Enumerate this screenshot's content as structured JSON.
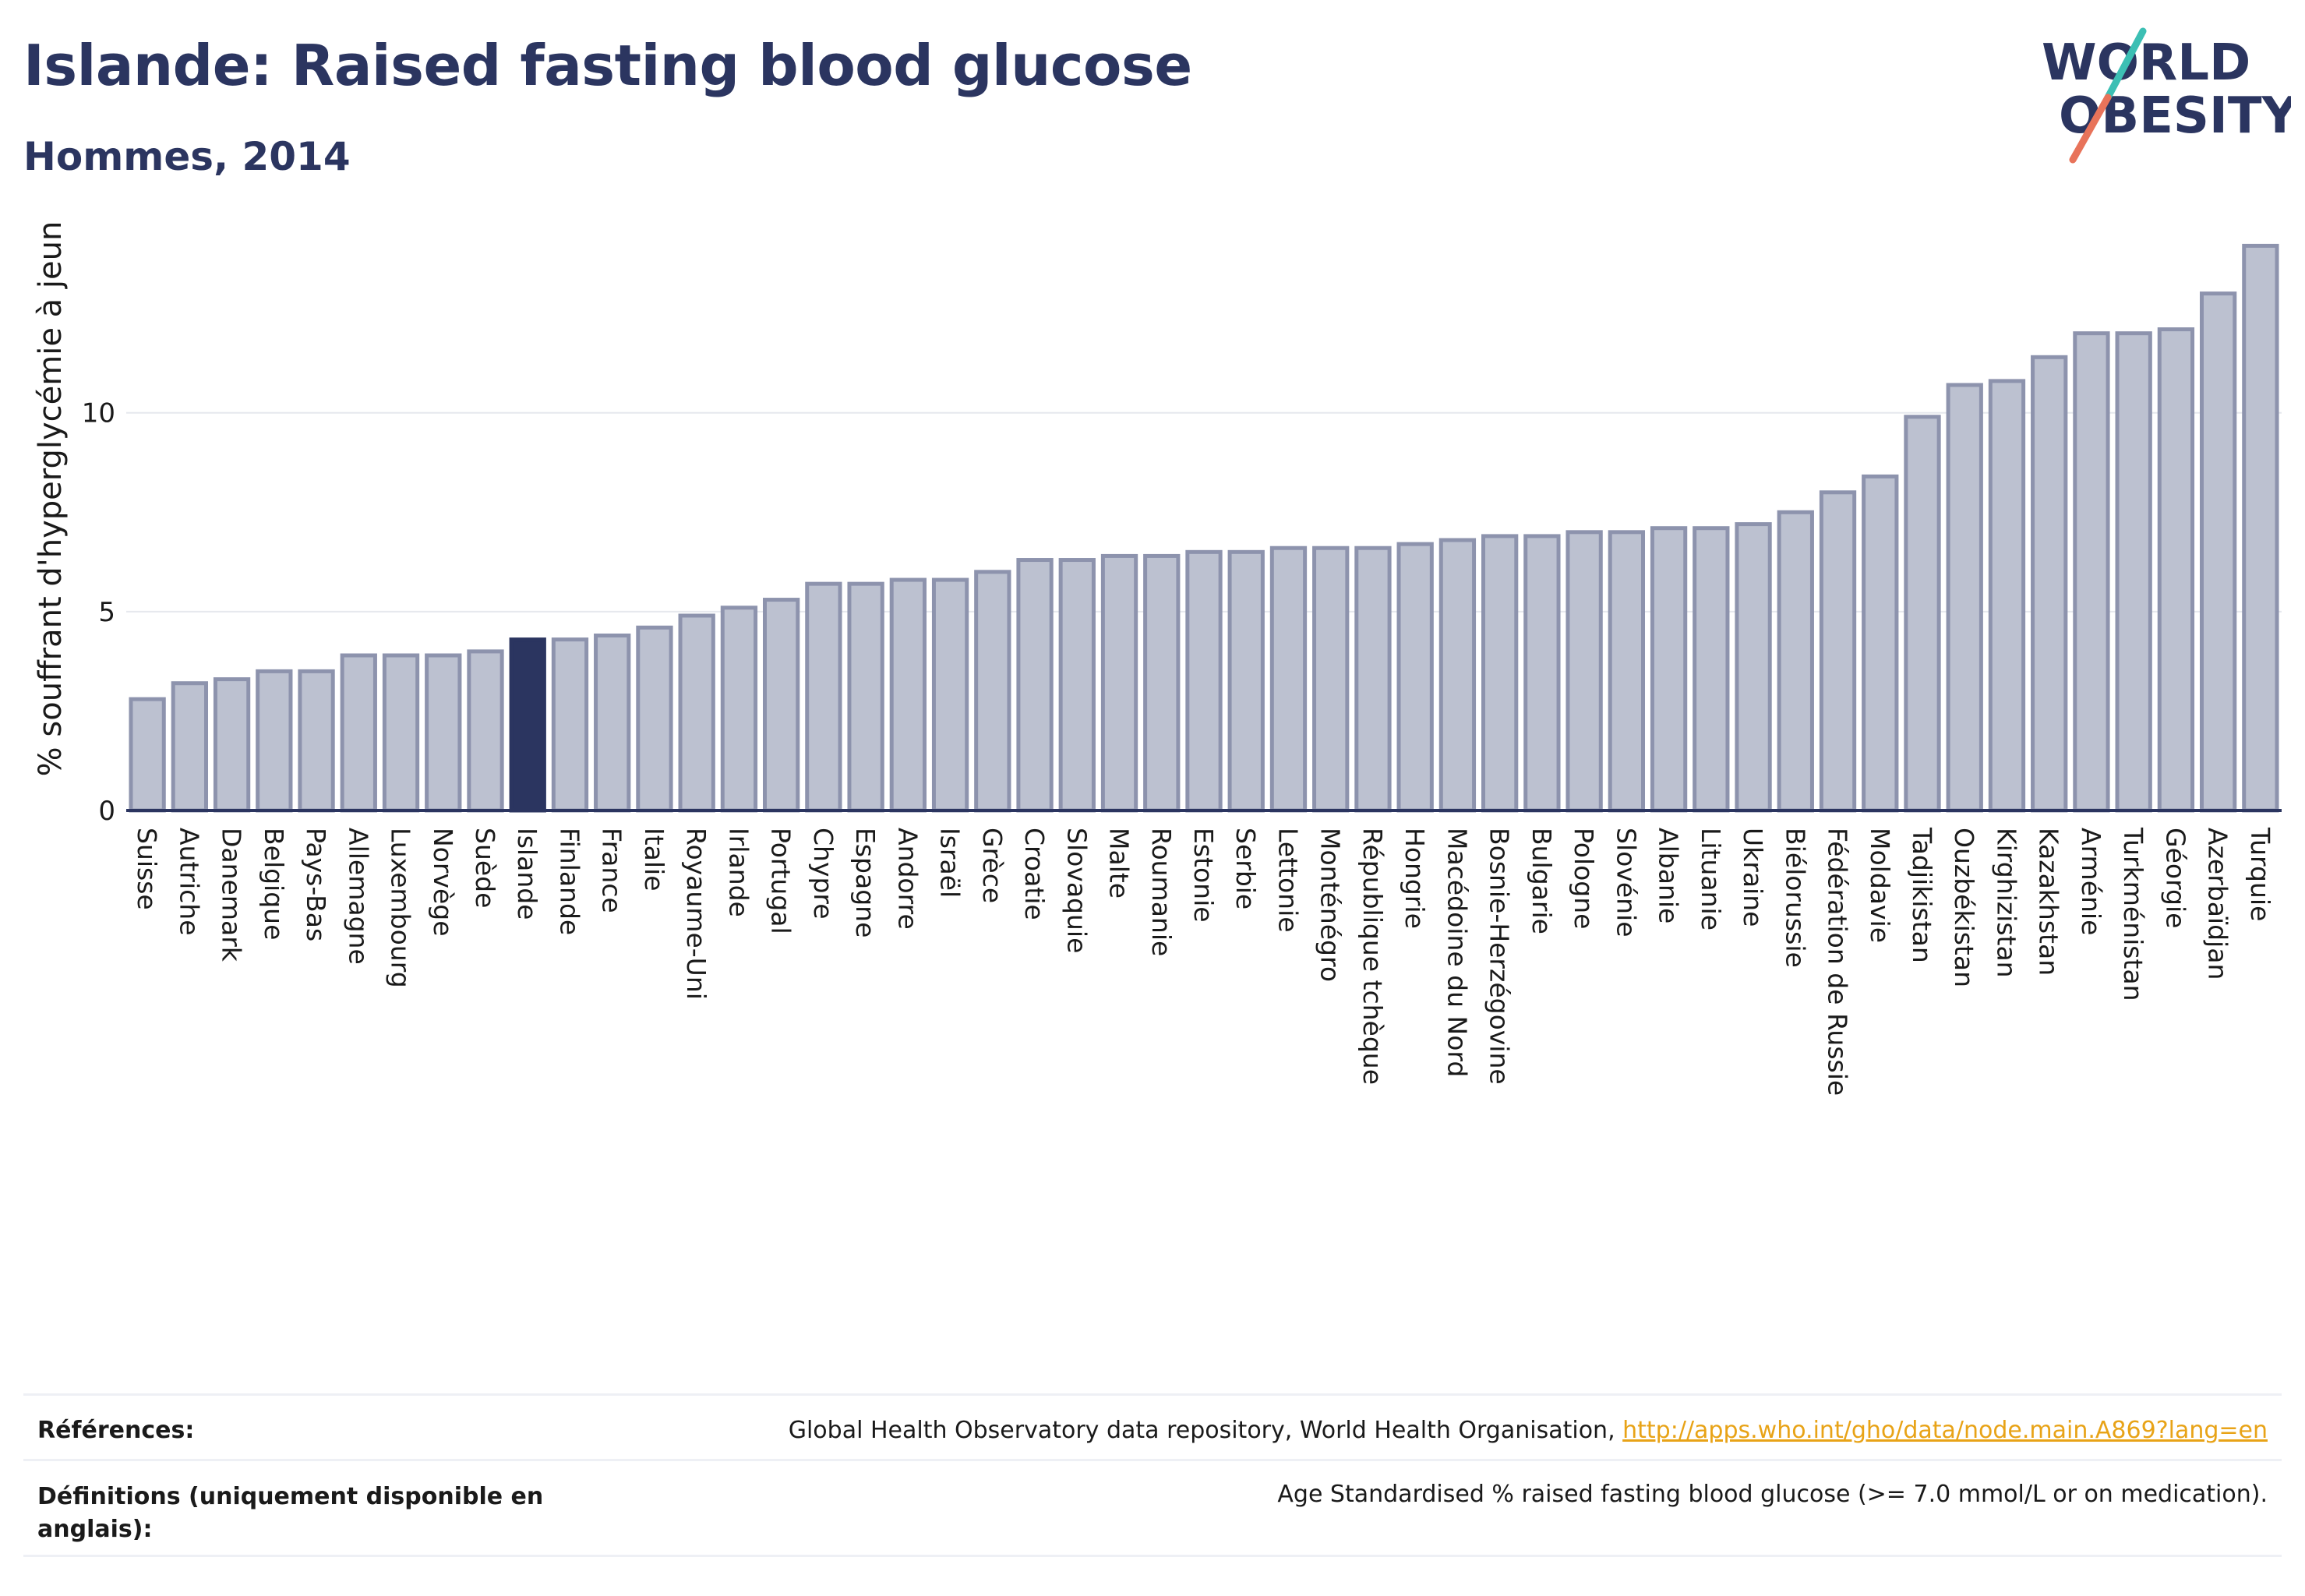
{
  "title": "Islande: Raised fasting blood glucose",
  "subtitle": "Hommes, 2014",
  "logo": {
    "line1": "WORLD",
    "line2": "OBESITY",
    "colors": {
      "text": "#2b3560",
      "slash_top": "#3cbfb4",
      "slash_bottom": "#e8735a"
    }
  },
  "colors": {
    "bar": "#bcc1d0",
    "bar_border": "#8d93ad",
    "highlight": "#2b3560",
    "axis": "#2b3560",
    "grid": "#e6e8ee"
  },
  "chart_data": {
    "type": "bar",
    "ylabel": "% souffrant d'hyperglycémie à jeun",
    "yticks": [
      0,
      5,
      10
    ],
    "ylim": [
      0,
      14.6
    ],
    "grid": true,
    "highlight": "Islande",
    "categories": [
      "Suisse",
      "Autriche",
      "Danemark",
      "Belgique",
      "Pays-Bas",
      "Allemagne",
      "Luxembourg",
      "Norvège",
      "Suède",
      "Islande",
      "Finlande",
      "France",
      "Italie",
      "Royaume-Uni",
      "Irlande",
      "Portugal",
      "Chypre",
      "Espagne",
      "Andorre",
      "Israël",
      "Grèce",
      "Croatie",
      "Slovaquie",
      "Malte",
      "Roumanie",
      "Estonie",
      "Serbie",
      "Lettonie",
      "Monténégro",
      "République tchèque",
      "Hongrie",
      "Macédoine du Nord",
      "Bosnie-Herzégovine",
      "Bulgarie",
      "Pologne",
      "Slovénie",
      "Albanie",
      "Lituanie",
      "Ukraine",
      "Biélorussie",
      "Fédération de Russie",
      "Moldavie",
      "Tadjikistan",
      "Ouzbékistan",
      "Kirghizistan",
      "Kazakhstan",
      "Arménie",
      "Turkménistan",
      "Géorgie",
      "Azerbaïdjan",
      "Turquie"
    ],
    "values": [
      2.8,
      3.2,
      3.3,
      3.5,
      3.5,
      3.9,
      3.9,
      3.9,
      4.0,
      4.3,
      4.3,
      4.4,
      4.6,
      4.9,
      5.1,
      5.3,
      5.7,
      5.7,
      5.8,
      5.8,
      6.0,
      6.3,
      6.3,
      6.4,
      6.4,
      6.5,
      6.5,
      6.6,
      6.6,
      6.6,
      6.7,
      6.8,
      6.9,
      6.9,
      7.0,
      7.0,
      7.1,
      7.1,
      7.2,
      7.5,
      8.0,
      8.4,
      9.9,
      10.7,
      10.8,
      11.4,
      12.0,
      12.0,
      12.1,
      13.0,
      14.2
    ]
  },
  "footer": {
    "references_label": "Références:",
    "references_text": "Global Health Observatory data repository, World Health Organisation, ",
    "references_link": "http://apps.who.int/gho/data/node.main.A869?lang=en",
    "definitions_label": "Définitions (uniquement disponible en anglais):",
    "definitions_text": "Age Standardised % raised fasting blood glucose (>= 7.0 mmol/L or on medication)."
  }
}
